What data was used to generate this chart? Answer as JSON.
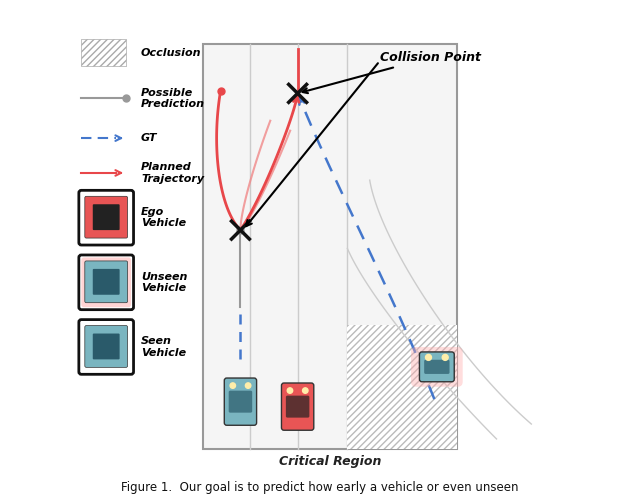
{
  "bg_color": "#ffffff",
  "road_color": "#f0f0f0",
  "road_border_color": "#aaaaaa",
  "lane_line_color": "#cccccc",
  "hatching_color": "#bbbbbb",
  "collision_point_upper": [
    0.52,
    0.87
  ],
  "collision_point_lower": [
    0.33,
    0.55
  ],
  "planned_traj_color": "#e8474a",
  "possible_pred_color": "#999999",
  "gt_color": "#4477cc",
  "collision_point_color": "#111111",
  "title_text": "Critical Region",
  "caption": "Figure 1.  Our goal is to predict how early a vehicle or even unseen",
  "collision_label": "Collision Point",
  "legend_items": [
    {
      "label": "Occlusion",
      "type": "hatch"
    },
    {
      "label": "Possible\nPrediction",
      "type": "gray_line"
    },
    {
      "label": "GT",
      "type": "blue_dash"
    },
    {
      "label": "Planned\nTrajectory",
      "type": "red_line"
    },
    {
      "label": "Ego\nVehicle",
      "type": "ego_car"
    },
    {
      "label": "Unseen\nVehicle",
      "type": "unseen_car"
    },
    {
      "label": "Seen\nVehicle",
      "type": "seen_car"
    }
  ]
}
